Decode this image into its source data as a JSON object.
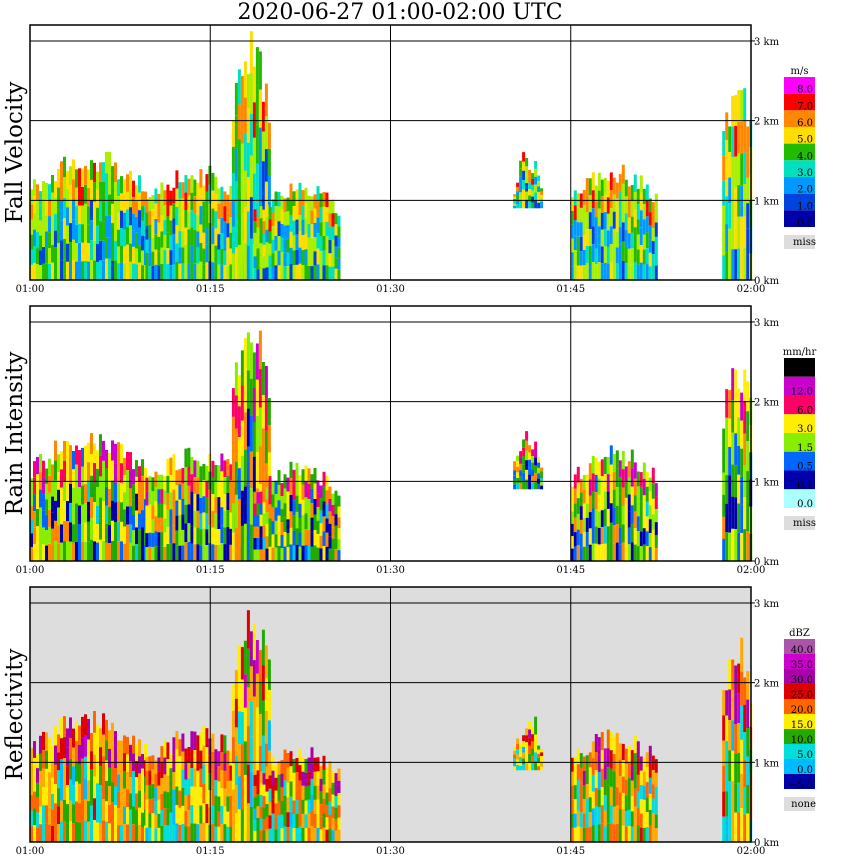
{
  "title": "2020-06-27   01:00-02:00 UTC",
  "chart_data": {
    "type": "heatmap",
    "x_ticks": [
      "01:00",
      "01:15",
      "01:30",
      "01:45",
      "02:00"
    ],
    "y_ticks": [
      "0 km",
      "1 km",
      "2 km",
      "3 km"
    ],
    "y_range_km": [
      0,
      3.2
    ],
    "grid": true,
    "panels": [
      {
        "label": "Fall Velocity",
        "unit": "m/s",
        "levels": [
          "8.0",
          "7.0",
          "6.0",
          "5.0",
          "4.0",
          "3.0",
          "2.0",
          "1.0",
          "0.0"
        ],
        "colors": [
          "#ff00ff",
          "#ff0000",
          "#ff8800",
          "#ffdd00",
          "#aaee00",
          "#22bb00",
          "#00e0c0",
          "#0099ff",
          "#0044dd",
          "#0000aa"
        ],
        "missing_label": "miss",
        "background": "#ffffff"
      },
      {
        "label": "Rain Intensity",
        "unit": "mm/hr",
        "levels": [
          "48.0",
          "12.0",
          "6.0",
          "3.0",
          "1.5",
          "0.5",
          "0.1",
          "0.0"
        ],
        "colors": [
          "#000000",
          "#8800aa",
          "#cc00cc",
          "#ff0066",
          "#ff8800",
          "#ffee00",
          "#88ee00",
          "#22aa00",
          "#0066ff",
          "#0000aa",
          "#00ccee",
          "#aaffff"
        ],
        "missing_label": "miss",
        "background": "#ffffff"
      },
      {
        "label": "Reflectivity",
        "unit": "dBZ",
        "levels": [
          "40.0",
          "35.0",
          "30.0",
          "25.0",
          "20.0",
          "15.0",
          "10.0",
          "5.0",
          "0.0",
          "−5.0"
        ],
        "colors": [
          "#aa55aa",
          "#cc00cc",
          "#aa00aa",
          "#dd0000",
          "#ff6600",
          "#ffaa00",
          "#ffee00",
          "#22aa00",
          "#00dddd",
          "#00bbff",
          "#0000aa"
        ],
        "missing_label": "none",
        "background": "#dddddd"
      }
    ]
  }
}
